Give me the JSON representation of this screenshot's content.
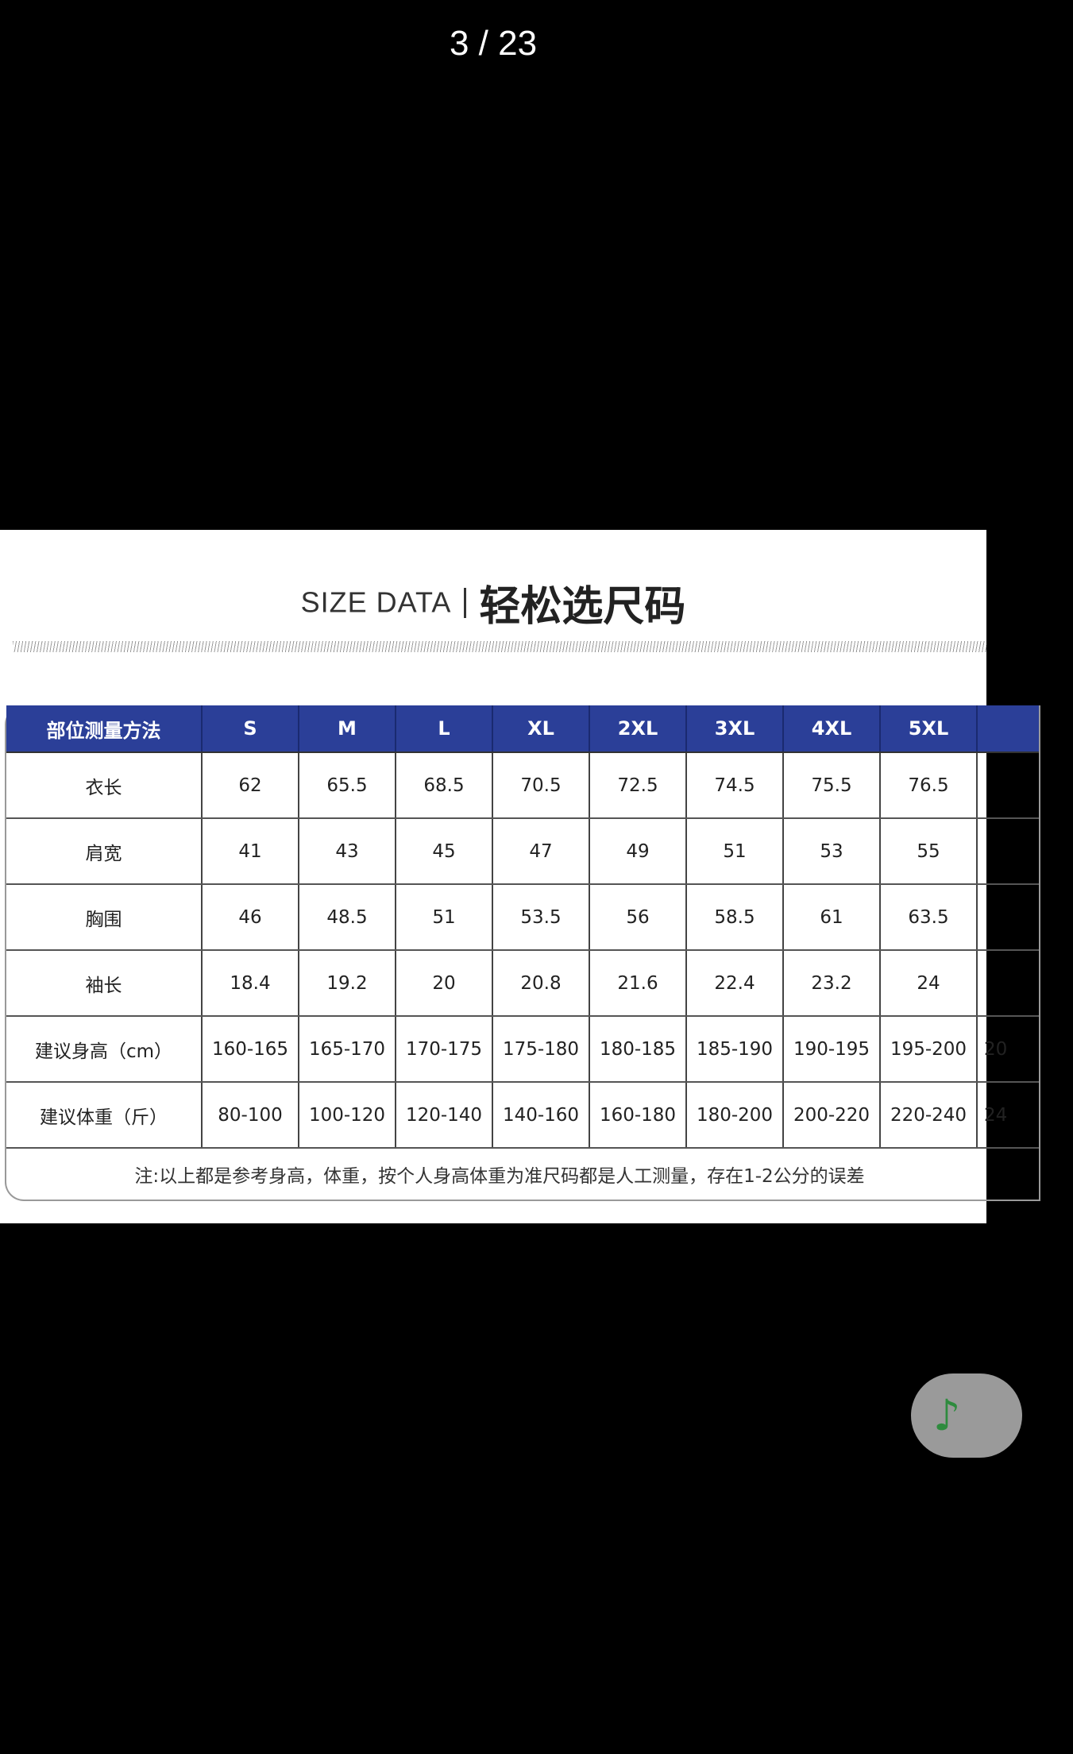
{
  "viewer": {
    "counter": "3 / 23"
  },
  "size_chart": {
    "title_en": "SIZE DATA",
    "title_cn": "轻松选尺码",
    "header_color": "#2b3f98",
    "headers": [
      "部位测量方法",
      "S",
      "M",
      "L",
      "XL",
      "2XL",
      "3XL",
      "4XL",
      "5XL",
      ""
    ],
    "rows": [
      {
        "label": "衣长",
        "values": [
          "62",
          "65.5",
          "68.5",
          "70.5",
          "72.5",
          "74.5",
          "75.5",
          "76.5",
          ""
        ]
      },
      {
        "label": "肩宽",
        "values": [
          "41",
          "43",
          "45",
          "47",
          "49",
          "51",
          "53",
          "55",
          ""
        ]
      },
      {
        "label": "胸围",
        "values": [
          "46",
          "48.5",
          "51",
          "53.5",
          "56",
          "58.5",
          "61",
          "63.5",
          ""
        ]
      },
      {
        "label": "袖长",
        "values": [
          "18.4",
          "19.2",
          "20",
          "20.8",
          "21.6",
          "22.4",
          "23.2",
          "24",
          ""
        ]
      },
      {
        "label": "建议身高（cm）",
        "values": [
          "160-165",
          "165-170",
          "170-175",
          "175-180",
          "180-185",
          "185-190",
          "190-195",
          "195-200",
          "20"
        ]
      },
      {
        "label": "建议体重（斤）",
        "values": [
          "80-100",
          "100-120",
          "120-140",
          "140-160",
          "160-180",
          "180-200",
          "200-220",
          "220-240",
          "24"
        ]
      }
    ],
    "note": "注:以上都是参考身高，体重，按个人身高体重为准尺码都是人工测量，存在1-2公分的误差"
  },
  "floating_button": {
    "icon": "music-note-icon",
    "color": "#2e8b3e"
  }
}
